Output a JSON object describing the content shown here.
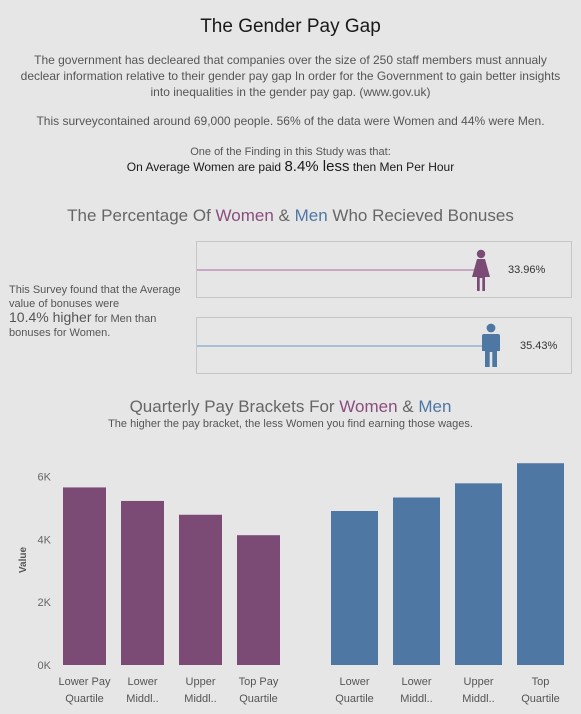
{
  "header": {
    "title": "The Gender Pay Gap",
    "intro": "The government has decleared that companies over the size of 250 staff members must annualy declear information relative to their gender pay gap In order for the Government to gain better insights into inequalities in the gender pay gap. (www.gov.uk)",
    "survey": "This  surveycontained  around 69,000 people. 56% of the data were Women and 44% were Men.",
    "finding_label": "One of the Finding in this Study was that:",
    "finding_pre": "On Average Women are paid ",
    "finding_big": "8.4% less",
    "finding_post": " then Men Per Hour"
  },
  "bonus": {
    "title_pre": "The Percentage Of ",
    "title_women": "Women",
    "title_amp": " & ",
    "title_men": "Men",
    "title_post": " Who Recieved Bonuses",
    "note_pre": "This Survey found that the Average value of  bonuses were",
    "note_big": "10.4% higher",
    "note_post": "  for Men than bonuses for Women.",
    "women_pct_label": "33.96%",
    "men_pct_label": "35.43%",
    "women_value": 33.96,
    "men_value": 35.43
  },
  "brackets": {
    "title_pre": "Quarterly Pay Brackets For ",
    "title_women": "Women",
    "title_amp": " & ",
    "title_men": "Men",
    "subtitle": "The higher the pay bracket, the less Women you find earning those wages."
  },
  "colors": {
    "women": "#7b4a75",
    "men": "#4e77a4",
    "women_track": "#c9a8c4",
    "men_track": "#a9bfd6"
  },
  "chart_data": {
    "type": "bar",
    "ylabel": "Value",
    "ylim": [
      0,
      7000
    ],
    "yticks": [
      0,
      2000,
      4000,
      6000
    ],
    "ytick_labels": [
      "0K",
      "2K",
      "4K",
      "6K"
    ],
    "grid": false,
    "series": [
      {
        "categories": [
          [
            "Lower Pay",
            "Quartile"
          ],
          [
            "Lower",
            "Middl.."
          ],
          [
            "Upper",
            "Middl.."
          ],
          [
            "Top Pay",
            "Quartile"
          ]
        ],
        "values": [
          5650,
          5220,
          4780,
          4130
        ]
      },
      {
        "categories": [
          [
            "Lower",
            "Quartile"
          ],
          [
            "Lower",
            "Middl.."
          ],
          [
            "Upper",
            "Middl.."
          ],
          [
            "Top",
            "Quartile"
          ]
        ],
        "values": [
          4900,
          5330,
          5780,
          6420
        ]
      }
    ]
  }
}
